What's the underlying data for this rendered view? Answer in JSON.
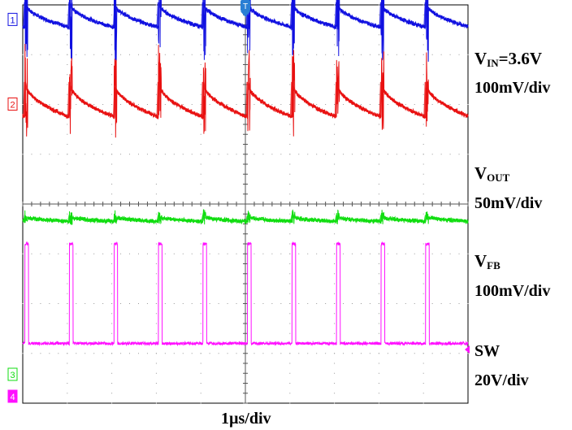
{
  "chart_data": {
    "type": "line",
    "x_unit": "µs",
    "xlim": [
      0,
      10
    ],
    "time_div_label": "1µs/div",
    "switch_period_us": 1.0,
    "switch_start_us": 0.05,
    "trigger_marker": "T",
    "channels": [
      {
        "id": "1",
        "color": "#1010e0",
        "divisions_offset": 3.7,
        "label_main": "V",
        "label_sub": "IN",
        "label_suffix": "=3.6V",
        "scale": "100mV/div",
        "ripple_div": [
          0.35,
          -0.15
        ],
        "spike_up_div": 1.6,
        "spike_down_div": 1.1
      },
      {
        "id": "2",
        "color": "#e81010",
        "divisions_offset": 2.0,
        "label_main": "V",
        "label_sub": "OUT",
        "label_suffix": "",
        "scale": "50mV/div",
        "ripple_div": [
          0.45,
          -0.25
        ],
        "spike_up_div": 0.8,
        "spike_down_div": 1.0
      },
      {
        "id": "3",
        "color": "#10dd10",
        "divisions_offset": -0.3,
        "label_main": "V",
        "label_sub": "FB",
        "label_suffix": "",
        "scale": "100mV/div",
        "ripple_div": [
          0.05,
          -0.05
        ],
        "spike_up_div": 0.15,
        "spike_down_div": 0.15
      },
      {
        "id": "4",
        "color": "#ff10ff",
        "divisions_offset": -2.8,
        "label_main": "SW",
        "label_sub": "",
        "label_suffix": "",
        "scale": "20V/div",
        "ripple_div": [
          0,
          0
        ],
        "pulse_div": 2.0,
        "pulse_width_us": 0.08
      }
    ],
    "channel_markers": [
      {
        "id": "1",
        "color": "#1010e0"
      },
      {
        "id": "2",
        "color": "#e81010"
      },
      {
        "id": "3",
        "color": "#10dd10"
      },
      {
        "id": "4",
        "color": "#ff10ff"
      }
    ]
  }
}
